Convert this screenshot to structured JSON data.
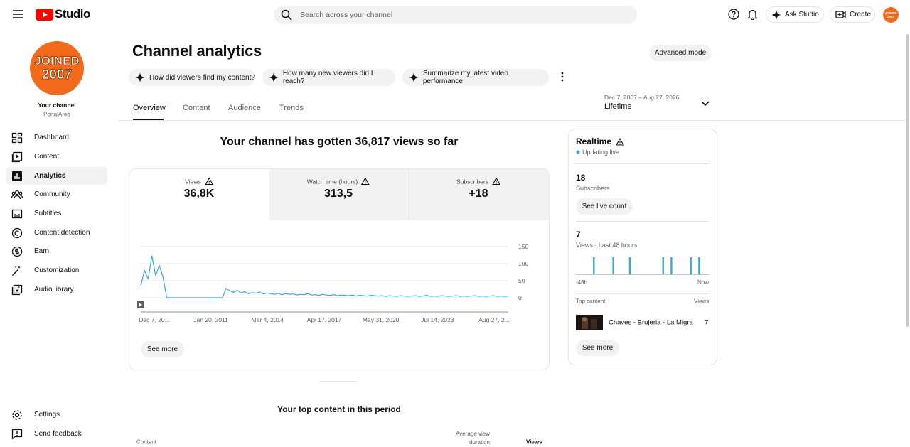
{
  "header": {
    "brand": "Studio",
    "search_placeholder": "Search across your channel",
    "ask_studio": "Ask Studio",
    "create": "Create",
    "avatar": "JOINED 2007"
  },
  "sidebar": {
    "avatar_lines": [
      "JOINED",
      "2007"
    ],
    "channel_label": "Your channel",
    "channel_name": "PortalArea",
    "nav": [
      "Dashboard",
      "Content",
      "Analytics",
      "Community",
      "Subtitles",
      "Content detection",
      "Earn",
      "Customization",
      "Audio library"
    ],
    "footer_nav": [
      "Settings",
      "Send feedback"
    ]
  },
  "page": {
    "title": "Channel analytics",
    "advanced_mode": "Advanced mode",
    "suggestions": [
      "How did viewers find my content?",
      "How many new viewers did I reach?",
      "Summarize my latest video performance"
    ],
    "tabs": [
      "Overview",
      "Content",
      "Audience",
      "Trends"
    ],
    "date_range": "Dec 7, 2007 – Aug 27, 2026",
    "period": "Lifetime"
  },
  "overview": {
    "headline": "Your channel has gotten 36,817 views so far",
    "metrics": [
      {
        "label": "Views",
        "value": "36,8K"
      },
      {
        "label": "Watch time (hours)",
        "value": "313,5"
      },
      {
        "label": "Subscribers",
        "value": "+18"
      }
    ],
    "see_more": "See more"
  },
  "chart_data": {
    "type": "line",
    "color": "#3ea6d0",
    "x_labels": [
      "Dec 7, 20...",
      "Jan 20, 2011",
      "Mar 4, 2014",
      "Apr 17, 2017",
      "May 31, 2020",
      "Jul 14, 2023",
      "Aug 27, 2..."
    ],
    "values": [
      35,
      80,
      55,
      123,
      65,
      95,
      60,
      0,
      0,
      0,
      0,
      0,
      0,
      0,
      0,
      0,
      0,
      0,
      0,
      0,
      0,
      0,
      0,
      28,
      20,
      16,
      22,
      14,
      18,
      12,
      15,
      13,
      17,
      11,
      14,
      12,
      10,
      13,
      9,
      12,
      10,
      11,
      8,
      10,
      9,
      12,
      8,
      9,
      7,
      10,
      8,
      7,
      9,
      6,
      8,
      7,
      6,
      8,
      5,
      7,
      6,
      5,
      7,
      6,
      5,
      6,
      4,
      6,
      5,
      4,
      6,
      5,
      4,
      5,
      6,
      4,
      5,
      7,
      4,
      5,
      4,
      6,
      5,
      4,
      5,
      6,
      4,
      5,
      4,
      5,
      6,
      4,
      5,
      4,
      5,
      6,
      4,
      5,
      4,
      5
    ],
    "ylim": [
      0,
      150
    ],
    "yticks": [
      0,
      50,
      100,
      150
    ],
    "grid": true
  },
  "realtime": {
    "title": "Realtime",
    "status": "Updating live",
    "subscribers": "18",
    "subscribers_label": "Subscribers",
    "see_live_count": "See live count",
    "views": "7",
    "views_label": "Views · Last 48 hours",
    "chart_data": {
      "type": "bar",
      "color": "#3ea6d0",
      "values": [
        0,
        0,
        0,
        0,
        0,
        0,
        1,
        0,
        0,
        0,
        0,
        0,
        0,
        1,
        0,
        0,
        0,
        0,
        0,
        1,
        0,
        0,
        0,
        0,
        0,
        0,
        0,
        0,
        0,
        0,
        0,
        1,
        0,
        0,
        1,
        0,
        0,
        0,
        0,
        0,
        0,
        1,
        0,
        0,
        1,
        0,
        0,
        0
      ],
      "start_label": "-48h",
      "end_label": "Now"
    },
    "top_content_label": "Top content",
    "views_column": "Views",
    "top_item": {
      "title": "Chaves - Brujeria - La Migra",
      "views": "7"
    },
    "see_more": "See more"
  },
  "top_content": {
    "title": "Your top content in this period",
    "columns": [
      "Content",
      "Average view duration",
      "Views"
    ]
  }
}
